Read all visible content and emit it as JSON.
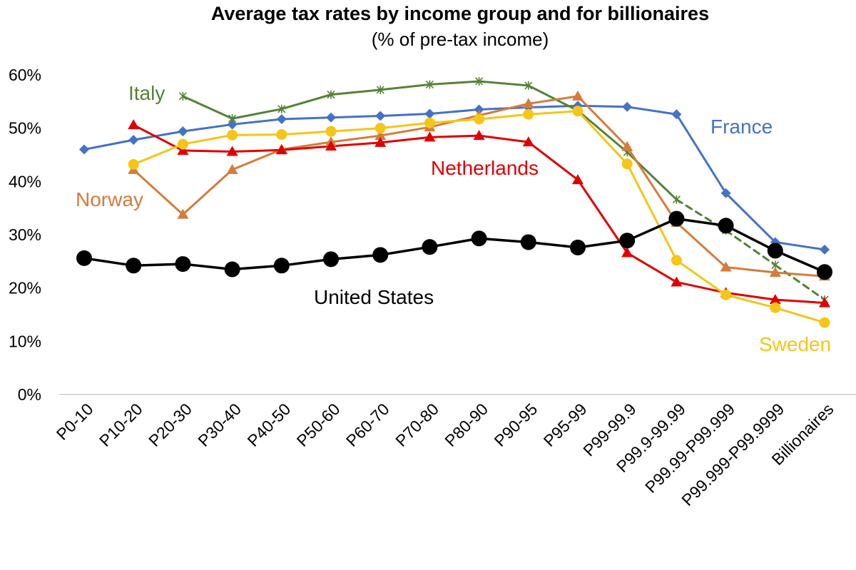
{
  "chart_data": {
    "type": "line",
    "title": "Average tax rates by income group and for billionaires",
    "subtitle": "(% of pre-tax income)",
    "xlabel": "",
    "ylabel": "",
    "ylim": [
      0,
      60
    ],
    "yticks": [
      0,
      10,
      20,
      30,
      40,
      50,
      60
    ],
    "ytick_labels": [
      "0%",
      "10%",
      "20%",
      "30%",
      "40%",
      "50%",
      "60%"
    ],
    "grid": false,
    "legend": "inline labels",
    "categories": [
      "P0-10",
      "P10-20",
      "P20-30",
      "P30-40",
      "P40-50",
      "P50-60",
      "P60-70",
      "P70-80",
      "P80-90",
      "P90-95",
      "P95-99",
      "P99-99.9",
      "P99.9-99.99",
      "P99.99-P99.999",
      "P99.999-P99.9999",
      "Billionaires"
    ],
    "series": [
      {
        "name": "France",
        "color": "#4472C4",
        "marker": "diamond",
        "values": [
          46,
          47.8,
          49.4,
          50.7,
          51.7,
          52,
          52.3,
          52.7,
          53.5,
          53.9,
          54.2,
          54,
          52.6,
          37.8,
          28.6,
          27.2
        ]
      },
      {
        "name": "Italy",
        "color": "#548235",
        "marker": "asterisk",
        "values": [
          null,
          null,
          56,
          51.8,
          53.6,
          56.3,
          57.2,
          58.2,
          58.8,
          58,
          53.3,
          45.5,
          36.6,
          30.8,
          24.3,
          17.8
        ],
        "dashed_from_index": 12
      },
      {
        "name": "Norway",
        "color": "#D47C3C",
        "marker": "triangle",
        "values": [
          null,
          42.2,
          33.8,
          42.2,
          46,
          47.4,
          48.6,
          50.2,
          52.4,
          54.6,
          56,
          46.5,
          32.3,
          23.9,
          22.9,
          22.2
        ]
      },
      {
        "name": "Netherlands",
        "color": "#E00000",
        "marker": "triangle",
        "values": [
          null,
          50.6,
          45.8,
          45.6,
          45.9,
          46.6,
          47.3,
          48.3,
          48.6,
          47.4,
          40.3,
          26.6,
          21.1,
          19.1,
          17.8,
          17.2
        ]
      },
      {
        "name": "Sweden",
        "color": "#F5C518",
        "marker": "circle",
        "values": [
          null,
          43.2,
          47,
          48.7,
          48.8,
          49.4,
          50,
          51,
          51.7,
          52.6,
          53.2,
          43.3,
          25.2,
          18.7,
          16.3,
          13.5
        ]
      },
      {
        "name": "United States",
        "color": "#000000",
        "marker": "circle-large",
        "values": [
          25.6,
          24.2,
          24.5,
          23.5,
          24.2,
          25.4,
          26.2,
          27.7,
          29.3,
          28.6,
          27.6,
          28.9,
          33,
          31.7,
          27,
          23
        ]
      }
    ]
  }
}
